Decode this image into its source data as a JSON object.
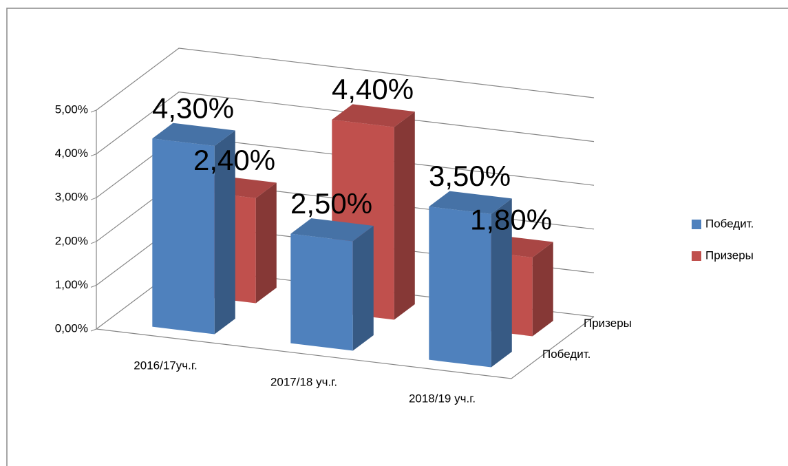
{
  "chart_data": {
    "type": "bar3d",
    "categories": [
      "2016/17уч.г.",
      "2017/18 уч.г.",
      "2018/19 уч.г."
    ],
    "series": [
      {
        "name": "Победит.",
        "color": "#4f81bd",
        "values": [
          4.3,
          2.5,
          3.5
        ],
        "value_labels": [
          "4,30%",
          "2,50%",
          "3,50%"
        ]
      },
      {
        "name": "Призеры",
        "color": "#c0504d",
        "values": [
          2.4,
          4.4,
          1.8
        ],
        "value_labels": [
          "2,40%",
          "4,40%",
          "1,80%"
        ]
      }
    ],
    "ylim": [
      0,
      5
    ],
    "yticks": [
      {
        "value": 0,
        "label": "0,00%"
      },
      {
        "value": 1,
        "label": "1,00%"
      },
      {
        "value": 2,
        "label": "2,00%"
      },
      {
        "value": 3,
        "label": "3,00%"
      },
      {
        "value": 4,
        "label": "4,00%"
      },
      {
        "value": 5,
        "label": "5,00%"
      }
    ],
    "grid": true,
    "legend": "right"
  }
}
